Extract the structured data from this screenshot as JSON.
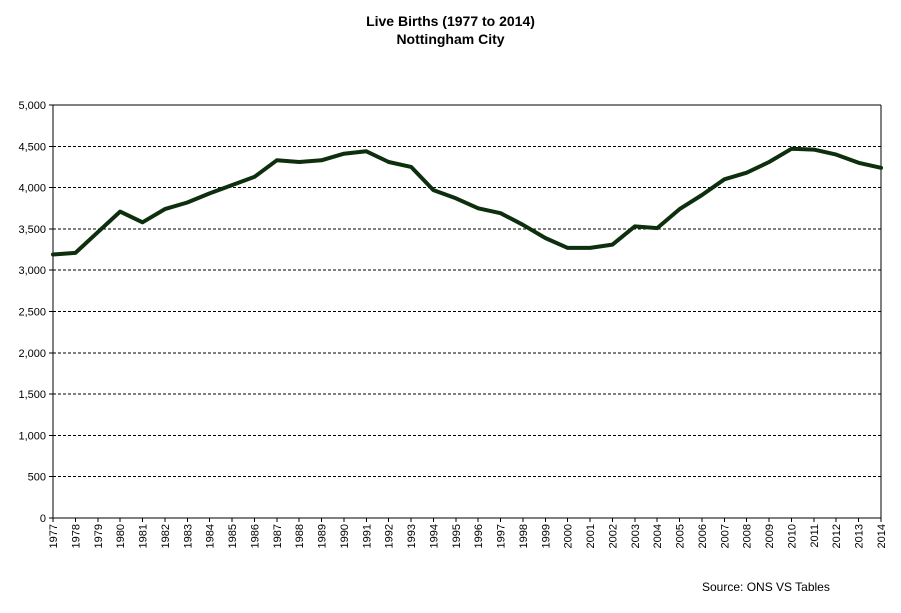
{
  "chart_data": {
    "type": "line",
    "title": "Live Births (1977 to 2014)",
    "subtitle": "Nottingham City",
    "source": "Source: ONS VS Tables",
    "x": [
      "1977",
      "1978",
      "1979",
      "1980",
      "1981",
      "1982",
      "1983",
      "1984",
      "1985",
      "1986",
      "1987",
      "1988",
      "1989",
      "1990",
      "1991",
      "1992",
      "1993",
      "1994",
      "1995",
      "1996",
      "1997",
      "1998",
      "1999",
      "2000",
      "2001",
      "2002",
      "2003",
      "2004",
      "2005",
      "2006",
      "2007",
      "2008",
      "2009",
      "2010",
      "2011",
      "2012",
      "2013",
      "2014"
    ],
    "series": [
      {
        "values": [
          3190,
          3210,
          3460,
          3710,
          3580,
          3740,
          3820,
          3930,
          4030,
          4130,
          4330,
          4310,
          4330,
          4410,
          4440,
          4310,
          4250,
          3970,
          3870,
          3750,
          3690,
          3550,
          3390,
          3270,
          3270,
          3310,
          3530,
          3510,
          3740,
          3910,
          4100,
          4180,
          4310,
          4470,
          4460,
          4400,
          4300,
          4240
        ],
        "color": "#0d2f0d"
      }
    ],
    "ylim": [
      0,
      5000
    ],
    "yticks": [
      0,
      500,
      1000,
      1500,
      2000,
      2500,
      3000,
      3500,
      4000,
      4500,
      5000
    ],
    "ytick_labels": [
      "0",
      "500",
      "1,000",
      "1,500",
      "2,000",
      "2,500",
      "3,000",
      "3,500",
      "4,000",
      "4,500",
      "5,000"
    ],
    "grid": true,
    "legend": "none"
  }
}
